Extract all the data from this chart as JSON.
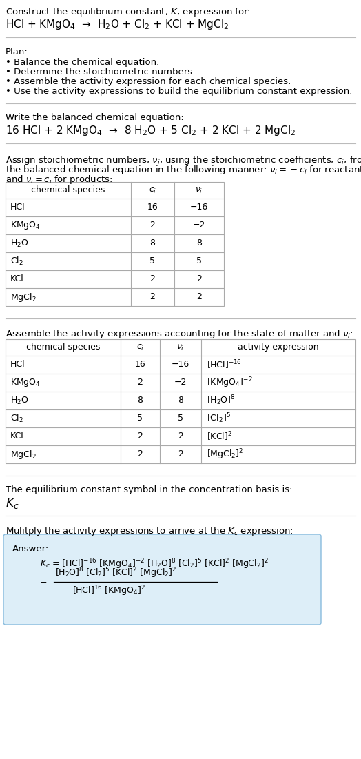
{
  "bg_color": "#ffffff",
  "text_color": "#000000",
  "table_line_color": "#aaaaaa",
  "answer_box_color": "#ddeef8",
  "answer_box_edge": "#88bbdd",
  "fig_w": 5.24,
  "fig_h": 11.01,
  "dpi": 100,
  "title_line1": "Construct the equilibrium constant, $K$, expression for:",
  "title_line2": "HCl + KMgO$_4$  →  H$_2$O + Cl$_2$ + KCl + MgCl$_2$",
  "plan_header": "Plan:",
  "plan_items": [
    "• Balance the chemical equation.",
    "• Determine the stoichiometric numbers.",
    "• Assemble the activity expression for each chemical species.",
    "• Use the activity expressions to build the equilibrium constant expression."
  ],
  "balanced_header": "Write the balanced chemical equation:",
  "balanced_eq": "16 HCl + 2 KMgO$_4$  →  8 H$_2$O + 5 Cl$_2$ + 2 KCl + 2 MgCl$_2$",
  "stoich_text1": "Assign stoichiometric numbers, $\\nu_i$, using the stoichiometric coefficients, $c_i$, from",
  "stoich_text2": "the balanced chemical equation in the following manner: $\\nu_i = -c_i$ for reactants",
  "stoich_text3": "and $\\nu_i = c_i$ for products:",
  "table1_headers": [
    "chemical species",
    "$c_i$",
    "$\\nu_i$"
  ],
  "table1_rows": [
    [
      "HCl",
      "16",
      "−16"
    ],
    [
      "KMgO$_4$",
      "2",
      "−2"
    ],
    [
      "H$_2$O",
      "8",
      "8"
    ],
    [
      "Cl$_2$",
      "5",
      "5"
    ],
    [
      "KCl",
      "2",
      "2"
    ],
    [
      "MgCl$_2$",
      "2",
      "2"
    ]
  ],
  "activity_intro": "Assemble the activity expressions accounting for the state of matter and $\\nu_i$:",
  "table2_headers": [
    "chemical species",
    "$c_i$",
    "$\\nu_i$",
    "activity expression"
  ],
  "table2_rows": [
    [
      "HCl",
      "16",
      "−16",
      "[HCl]$^{-16}$"
    ],
    [
      "KMgO$_4$",
      "2",
      "−2",
      "[KMgO$_4$]$^{-2}$"
    ],
    [
      "H$_2$O",
      "8",
      "8",
      "[H$_2$O]$^8$"
    ],
    [
      "Cl$_2$",
      "5",
      "5",
      "[Cl$_2$]$^5$"
    ],
    [
      "KCl",
      "2",
      "2",
      "[KCl]$^2$"
    ],
    [
      "MgCl$_2$",
      "2",
      "2",
      "[MgCl$_2$]$^2$"
    ]
  ],
  "kc_intro": "The equilibrium constant symbol in the concentration basis is:",
  "kc_symbol": "$K_c$",
  "multiply_intro": "Mulitply the activity expressions to arrive at the $K_c$ expression:",
  "answer_label": "Answer:",
  "answer_line1": "$K_c$ = [HCl]$^{-16}$ [KMgO$_4$]$^{-2}$ [H$_2$O]$^8$ [Cl$_2$]$^5$ [KCl]$^2$ [MgCl$_2$]$^2$",
  "answer_eq_lhs": "    = ",
  "answer_eq_top": "[H$_2$O]$^8$ [Cl$_2$]$^5$ [KCl]$^2$ [MgCl$_2$]$^2$",
  "answer_eq_bottom": "[HCl]$^{16}$ [KMgO$_4$]$^2$"
}
